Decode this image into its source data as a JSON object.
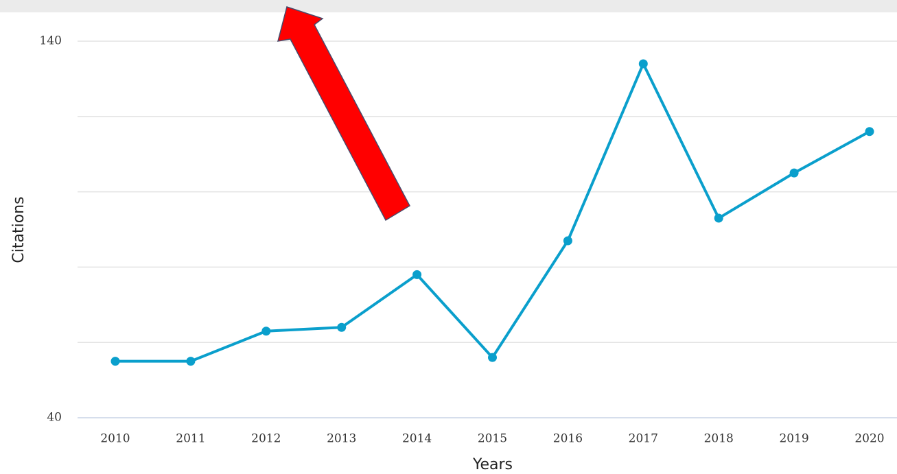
{
  "chart_data": {
    "type": "line",
    "x_label": "Years",
    "y_label": "Citations",
    "categories": [
      "2010",
      "2011",
      "2012",
      "2013",
      "2014",
      "2015",
      "2016",
      "2017",
      "2018",
      "2019",
      "2020"
    ],
    "series": [
      {
        "name": "Citations",
        "color": "#0a9fcc",
        "values": [
          55,
          55,
          63,
          64,
          78,
          56,
          87,
          134,
          93,
          105,
          116
        ]
      }
    ],
    "ylim": [
      40,
      140
    ],
    "yticks": [
      40,
      140
    ],
    "minor_yticks": [
      60,
      80,
      100,
      120
    ],
    "grid": true
  }
}
